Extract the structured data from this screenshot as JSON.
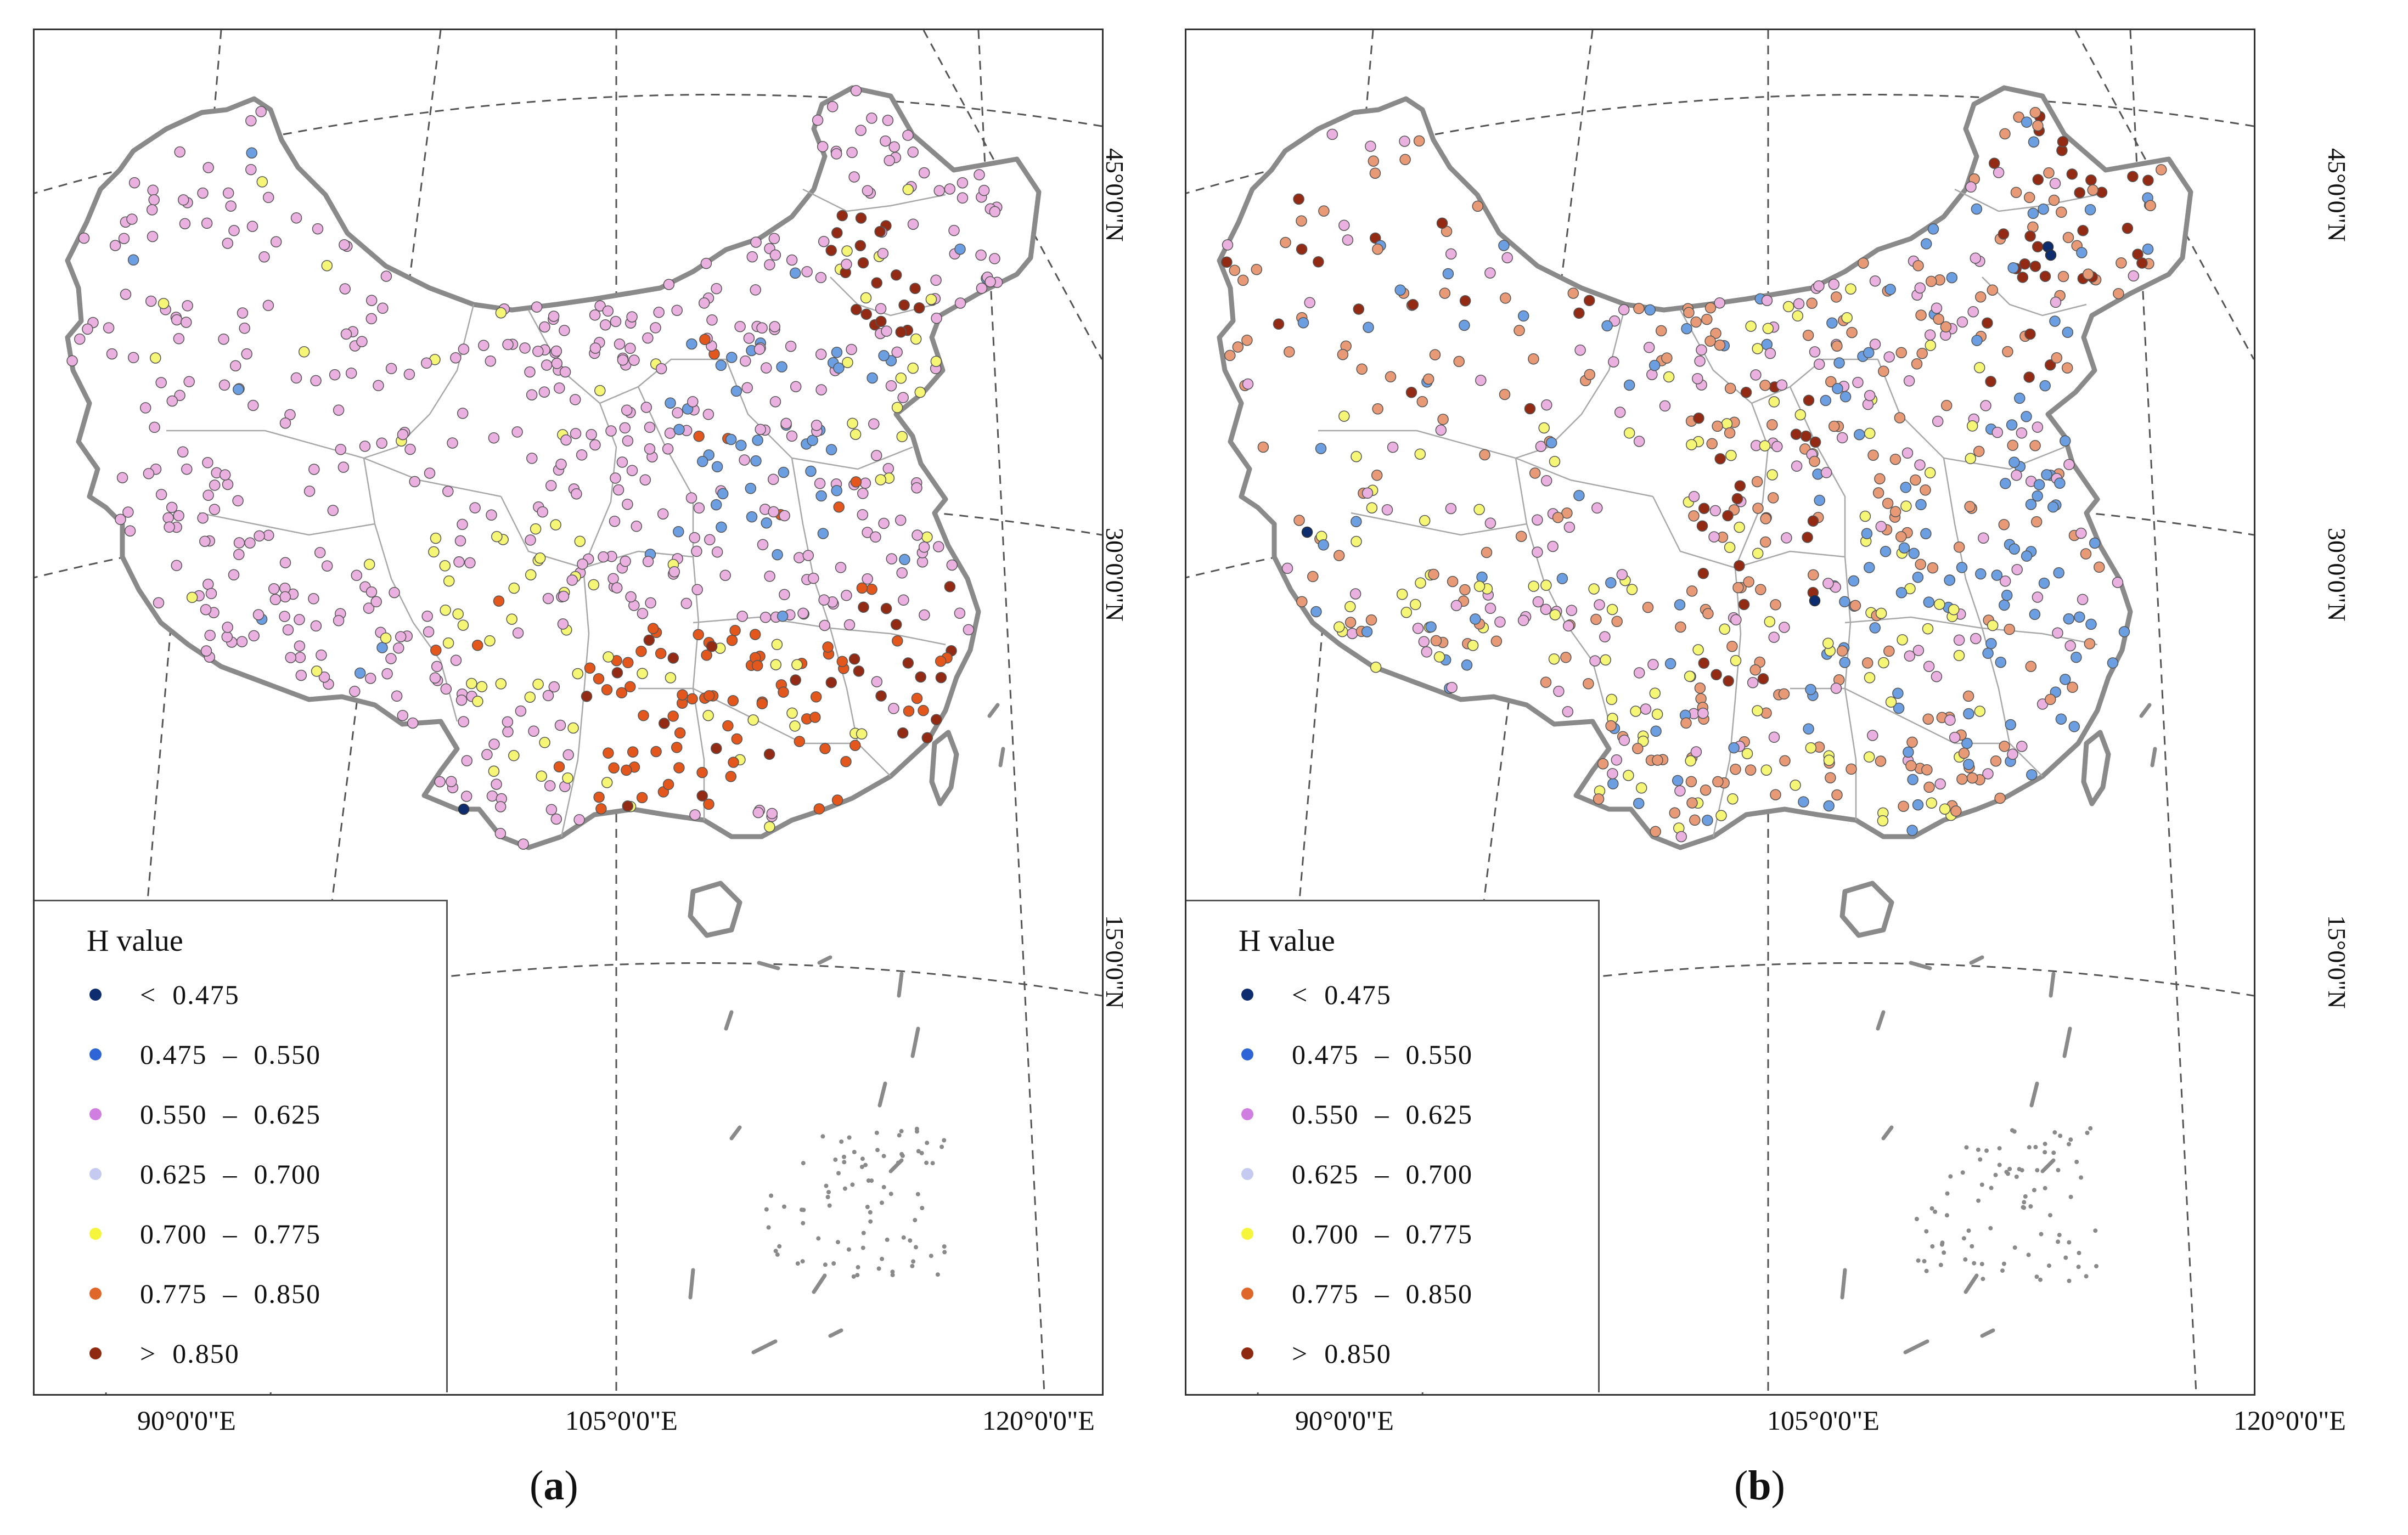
{
  "legend": {
    "title": "H  value",
    "classes": [
      {
        "label": "<  0.475",
        "color": "#0d2d6e"
      },
      {
        "label": "0.475  –  0.550",
        "color": "#2e64d6"
      },
      {
        "label": "0.550  –  0.625",
        "color": "#d07ee0"
      },
      {
        "label": "0.625  –  0.700",
        "color": "#c5cbf0"
      },
      {
        "label": "0.700  –  0.775",
        "color": "#f5f53c"
      },
      {
        "label": "0.775  –  0.850",
        "color": "#e0672a"
      },
      {
        "label": ">  0.850",
        "color": "#8e2a10"
      }
    ]
  },
  "axes": {
    "latitude_labels": [
      "45°0'0\"N",
      "30°0'0\"N",
      "15°0'0\"N"
    ],
    "longitude_labels": [
      "90°0'0\"E",
      "105°0'0\"E",
      "120°0'0\"E"
    ]
  },
  "station_colors": {
    "pink": "#eab0df",
    "blue": "#6b9fe2",
    "yellow": "#f5f576",
    "orange": "#e3571d",
    "dark_red": "#932a14",
    "salmon": "#e89a77",
    "navy": "#0d2d6e"
  },
  "panels": [
    {
      "id": "a",
      "caption": "a",
      "dominant": "pink"
    },
    {
      "id": "b",
      "caption": "b",
      "dominant": "mixed"
    }
  ]
}
